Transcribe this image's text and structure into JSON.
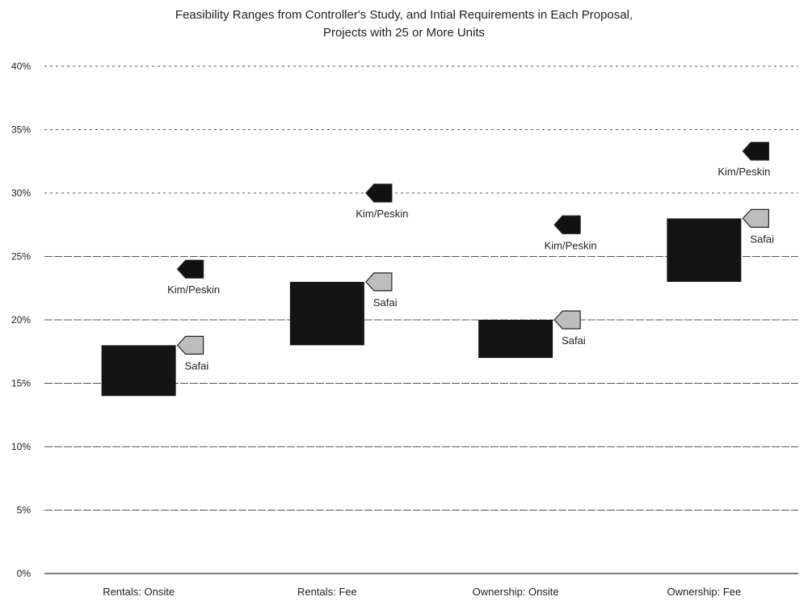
{
  "chart_data": {
    "type": "bar",
    "subtype": "floating-range",
    "title": "Feasibility Ranges from Controller's Study, and Intial Requirements in Each Proposal,",
    "subtitle": "Projects with 25 or More Units",
    "xlabel": "",
    "ylabel": "",
    "ylim": [
      0,
      40
    ],
    "yticks": [
      "0%",
      "5%",
      "10%",
      "15%",
      "20%",
      "25%",
      "30%",
      "35%",
      "40%"
    ],
    "grid": true,
    "categories": [
      "Rentals: Onsite",
      "Rentals: Fee",
      "Ownership: Onsite",
      "Ownership: Fee"
    ],
    "ranges": [
      {
        "low": 14,
        "high": 18
      },
      {
        "low": 18,
        "high": 23
      },
      {
        "low": 17,
        "high": 20
      },
      {
        "low": 23,
        "high": 28
      }
    ],
    "series": [
      {
        "name": "Kim/Peskin",
        "values": [
          24,
          30,
          27.5,
          33.3
        ],
        "color": "#111111",
        "label": "Kim/Peskin"
      },
      {
        "name": "Safai",
        "values": [
          18,
          23,
          20,
          28
        ],
        "color": "#bdbdbd",
        "label": "Safai"
      }
    ],
    "colors": {
      "range": "#141414",
      "grid": "#555555",
      "axis": "#333333"
    }
  }
}
